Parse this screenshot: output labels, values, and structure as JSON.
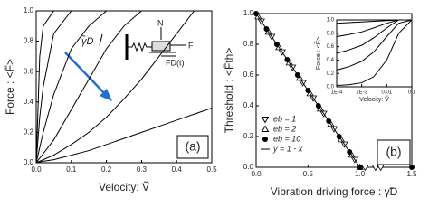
{
  "chart_data": [
    {
      "type": "line",
      "x_label": "Velocity: Ṽ",
      "y_label": "Force : <F̃>",
      "annotations": [
        "γ̃D",
        "N",
        "F",
        "FD(t)",
        "(a)"
      ],
      "x": [
        0,
        0.01,
        0.02,
        0.05,
        0.1,
        0.15,
        0.2,
        0.25,
        0.3,
        0.35,
        0.4,
        0.45,
        0.5
      ],
      "series": [
        {
          "color": "#000000",
          "values": [
            0,
            0.7,
            0.9,
            1.0,
            1.0,
            1.0,
            1.0,
            1.0,
            1.0,
            1.0,
            1.0,
            1.0,
            1.0
          ]
        },
        {
          "color": "#000000",
          "values": [
            0,
            0.3,
            0.5,
            0.85,
            1.0,
            1.0,
            1.0,
            1.0,
            1.0,
            1.0,
            1.0,
            1.0,
            1.0
          ]
        },
        {
          "color": "#000000",
          "values": [
            0,
            0.1,
            0.2,
            0.45,
            0.75,
            0.9,
            1.0,
            1.0,
            1.0,
            1.0,
            1.0,
            1.0,
            1.0
          ]
        },
        {
          "color": "#000000",
          "values": [
            0,
            0.03,
            0.06,
            0.15,
            0.35,
            0.55,
            0.75,
            0.9,
            1.0,
            1.0,
            1.0,
            1.0,
            1.0
          ]
        },
        {
          "color": "#000000",
          "values": [
            0,
            0.01,
            0.02,
            0.05,
            0.12,
            0.2,
            0.3,
            0.42,
            0.55,
            0.7,
            0.85,
            1.0,
            1.0
          ]
        },
        {
          "color": "#000000",
          "values": [
            0,
            0.005,
            0.01,
            0.02,
            0.05,
            0.08,
            0.12,
            0.16,
            0.2,
            0.24,
            0.28,
            0.32,
            0.36
          ]
        }
      ],
      "xlim": [
        0,
        0.5
      ],
      "xticks": [
        {
          "value": 0,
          "label": "0.0"
        },
        0.1,
        0.2,
        0.3,
        0.4,
        0.5
      ],
      "ylim": [
        0,
        1.0
      ],
      "yticks": [
        {
          "value": 0,
          "label": "0.0"
        },
        0.2,
        0.4,
        0.6,
        0.8,
        {
          "value": 1.0,
          "label": "1.0"
        }
      ]
    },
    {
      "type": "scatter",
      "x_label": "Vibration driving force :  γ̃D",
      "y_label": "Threshold : <F̃th>",
      "annotations": [
        "(b)"
      ],
      "legend": "lower left",
      "series": [
        {
          "name": "eb = 1",
          "marker": "triangle-down",
          "color": "#000000",
          "x": [
            0.05,
            0.15,
            0.25,
            0.35,
            0.45,
            0.55,
            0.65,
            0.75,
            0.85,
            0.95,
            1.05,
            1.15,
            1.2
          ],
          "values": [
            0.95,
            0.85,
            0.75,
            0.65,
            0.55,
            0.45,
            0.35,
            0.25,
            0.15,
            0.05,
            0,
            0,
            0
          ]
        },
        {
          "name": "eb = 2",
          "marker": "triangle-up",
          "color": "#000000",
          "x": [
            0.02,
            0.12,
            0.22,
            0.32,
            0.42,
            0.52,
            0.62,
            0.72,
            0.82,
            0.92,
            1.0
          ],
          "values": [
            0.98,
            0.88,
            0.78,
            0.68,
            0.58,
            0.48,
            0.38,
            0.28,
            0.18,
            0.08,
            0
          ]
        },
        {
          "name": "eb = 10",
          "marker": "circle",
          "color": "#000000",
          "x": [
            0,
            0.1,
            0.2,
            0.3,
            0.4,
            0.5,
            0.6,
            0.7,
            0.8,
            0.9,
            1.0,
            1.5
          ],
          "values": [
            1.0,
            0.9,
            0.8,
            0.7,
            0.6,
            0.5,
            0.4,
            0.3,
            0.2,
            0.1,
            0,
            0
          ]
        },
        {
          "name": "y = 1 - x",
          "marker": "line",
          "color": "#000000",
          "x": [
            0,
            1.0
          ],
          "values": [
            1.0,
            0
          ]
        }
      ],
      "xlim": [
        0,
        1.5
      ],
      "xticks": [
        {
          "value": 0,
          "label": "0.0"
        },
        0.5,
        {
          "value": 1.0,
          "label": "1.0"
        },
        1.5
      ],
      "ylim": [
        0,
        1.0
      ],
      "yticks": [
        {
          "value": 0,
          "label": "0.0"
        },
        0.2,
        0.4,
        0.6,
        0.8,
        {
          "value": 1.0,
          "label": "1.0"
        }
      ]
    },
    {
      "type": "line",
      "x_label": "Velocity: Ṽ",
      "y_label": "Force : <F̃>",
      "xlog": true,
      "x": [
        0.0001,
        0.0003,
        0.001,
        0.003,
        0.01,
        0.03,
        0.1
      ],
      "series": [
        {
          "color": "#000000",
          "values": [
            0.95,
            0.96,
            0.97,
            0.98,
            0.99,
            1.0,
            1.0
          ]
        },
        {
          "color": "#000000",
          "values": [
            0.75,
            0.78,
            0.82,
            0.88,
            0.95,
            1.0,
            1.0
          ]
        },
        {
          "color": "#000000",
          "values": [
            0.5,
            0.55,
            0.62,
            0.73,
            0.88,
            1.0,
            1.0
          ]
        },
        {
          "color": "#000000",
          "values": [
            0.25,
            0.3,
            0.38,
            0.52,
            0.75,
            0.95,
            1.0
          ]
        },
        {
          "color": "#000000",
          "values": [
            0.02,
            0.03,
            0.06,
            0.15,
            0.4,
            0.8,
            1.0
          ]
        }
      ],
      "xlim": [
        0.0001,
        0.1
      ],
      "xticks": [
        {
          "value": 0.0001,
          "label": "1E-4"
        },
        {
          "value": 0.001,
          "label": "1E-3"
        },
        0.01,
        0.1
      ],
      "ylim": [
        0,
        1.0
      ],
      "yticks": [
        {
          "value": 0,
          "label": "0.0"
        },
        0.2,
        0.4,
        0.6,
        0.8,
        {
          "value": 1.0,
          "label": "1.0"
        }
      ]
    }
  ]
}
